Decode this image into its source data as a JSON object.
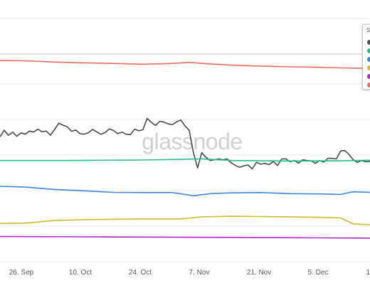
{
  "watermark": "glassnode",
  "legend": {
    "title": "S",
    "colors": [
      "#4a4a4a",
      "#1fbf8f",
      "#3a86dc",
      "#d4b82a",
      "#b026c8",
      "#ef6a5c"
    ]
  },
  "chart_data": {
    "type": "line",
    "title": "",
    "xlabel": "",
    "ylabel": "",
    "grid": true,
    "legend_placement": "top-right",
    "x_ticks": [
      "26. Sep",
      "10. Oct",
      "24. Oct",
      "7. Nov",
      "21. Nov",
      "5. Dec",
      "1"
    ],
    "x_range": [
      "2022-09-20",
      "2022-12-17"
    ],
    "y_range": [
      0,
      100
    ],
    "series": [
      {
        "color": "#ef6a5c",
        "points": [
          [
            "2022-09-20",
            77.0
          ],
          [
            "2022-09-26",
            76.9
          ],
          [
            "2022-10-03",
            76.4
          ],
          [
            "2022-10-10",
            76.1
          ],
          [
            "2022-10-17",
            75.9
          ],
          [
            "2022-10-24",
            75.6
          ],
          [
            "2022-10-31",
            75.9
          ],
          [
            "2022-11-04",
            76.3
          ],
          [
            "2022-11-09",
            75.7
          ],
          [
            "2022-11-15",
            75.2
          ],
          [
            "2022-11-21",
            74.9
          ],
          [
            "2022-11-28",
            74.6
          ],
          [
            "2022-12-05",
            74.4
          ],
          [
            "2022-12-10",
            74.2
          ],
          [
            "2022-12-17",
            74.0
          ]
        ]
      },
      {
        "color": "#4a4a4a",
        "points": [
          [
            "2022-09-20",
            48.0
          ],
          [
            "2022-09-21",
            50.5
          ],
          [
            "2022-09-22",
            48.6
          ],
          [
            "2022-09-23",
            49.8
          ],
          [
            "2022-09-24",
            48.2
          ],
          [
            "2022-09-25",
            49.5
          ],
          [
            "2022-09-26",
            49.0
          ],
          [
            "2022-09-27",
            50.2
          ],
          [
            "2022-09-28",
            49.8
          ],
          [
            "2022-09-29",
            50.9
          ],
          [
            "2022-09-30",
            49.9
          ],
          [
            "2022-10-01",
            50.2
          ],
          [
            "2022-10-02",
            48.6
          ],
          [
            "2022-10-03",
            50.8
          ],
          [
            "2022-10-04",
            53.2
          ],
          [
            "2022-10-05",
            52.4
          ],
          [
            "2022-10-06",
            51.8
          ],
          [
            "2022-10-07",
            50.1
          ],
          [
            "2022-10-08",
            50.6
          ],
          [
            "2022-10-09",
            49.2
          ],
          [
            "2022-10-10",
            49.0
          ],
          [
            "2022-10-11",
            49.5
          ],
          [
            "2022-10-12",
            50.8
          ],
          [
            "2022-10-13",
            49.9
          ],
          [
            "2022-10-14",
            49.0
          ],
          [
            "2022-10-15",
            49.6
          ],
          [
            "2022-10-16",
            51.0
          ],
          [
            "2022-10-17",
            50.4
          ],
          [
            "2022-10-18",
            49.2
          ],
          [
            "2022-10-19",
            49.8
          ],
          [
            "2022-10-20",
            49.0
          ],
          [
            "2022-10-21",
            48.8
          ],
          [
            "2022-10-22",
            50.9
          ],
          [
            "2022-10-23",
            50.3
          ],
          [
            "2022-10-24",
            50.7
          ],
          [
            "2022-10-25",
            55.0
          ],
          [
            "2022-10-26",
            53.5
          ],
          [
            "2022-10-27",
            52.3
          ],
          [
            "2022-10-28",
            53.9
          ],
          [
            "2022-10-29",
            53.6
          ],
          [
            "2022-10-30",
            52.9
          ],
          [
            "2022-10-31",
            52.6
          ],
          [
            "2022-11-01",
            53.7
          ],
          [
            "2022-11-02",
            54.4
          ],
          [
            "2022-11-03",
            52.1
          ],
          [
            "2022-11-04",
            50.5
          ],
          [
            "2022-11-05",
            42.0
          ],
          [
            "2022-11-06",
            36.2
          ],
          [
            "2022-11-07",
            42.0
          ],
          [
            "2022-11-08",
            40.2
          ],
          [
            "2022-11-09",
            39.0
          ],
          [
            "2022-11-10",
            39.3
          ],
          [
            "2022-11-11",
            39.6
          ],
          [
            "2022-11-12",
            39.3
          ],
          [
            "2022-11-13",
            39.6
          ],
          [
            "2022-11-14",
            38.1
          ],
          [
            "2022-11-15",
            37.1
          ],
          [
            "2022-11-16",
            36.4
          ],
          [
            "2022-11-17",
            37.0
          ],
          [
            "2022-11-18",
            37.3
          ],
          [
            "2022-11-19",
            35.8
          ],
          [
            "2022-11-20",
            38.3
          ],
          [
            "2022-11-21",
            37.6
          ],
          [
            "2022-11-22",
            37.9
          ],
          [
            "2022-11-23",
            37.4
          ],
          [
            "2022-11-24",
            38.6
          ],
          [
            "2022-11-25",
            37.1
          ],
          [
            "2022-11-26",
            39.6
          ],
          [
            "2022-11-27",
            39.6
          ],
          [
            "2022-11-28",
            38.5
          ],
          [
            "2022-11-29",
            39.0
          ],
          [
            "2022-11-30",
            38.0
          ],
          [
            "2022-12-01",
            39.3
          ],
          [
            "2022-12-02",
            39.0
          ],
          [
            "2022-12-03",
            38.9
          ],
          [
            "2022-12-04",
            37.9
          ],
          [
            "2022-12-05",
            39.0
          ],
          [
            "2022-12-06",
            38.4
          ],
          [
            "2022-12-07",
            39.8
          ],
          [
            "2022-12-08",
            39.8
          ],
          [
            "2022-12-09",
            39.6
          ],
          [
            "2022-12-10",
            42.6
          ],
          [
            "2022-12-11",
            42.8
          ],
          [
            "2022-12-12",
            41.3
          ],
          [
            "2022-12-13",
            39.3
          ],
          [
            "2022-12-14",
            38.3
          ],
          [
            "2022-12-15",
            39.0
          ],
          [
            "2022-12-16",
            38.5
          ],
          [
            "2022-12-17",
            38.6
          ]
        ]
      },
      {
        "color": "#1fbf8f",
        "points": [
          [
            "2022-09-20",
            39.0
          ],
          [
            "2022-10-06",
            39.0
          ],
          [
            "2022-10-24",
            39.2
          ],
          [
            "2022-11-07",
            39.6
          ],
          [
            "2022-11-14",
            39.0
          ],
          [
            "2022-11-28",
            38.8
          ],
          [
            "2022-12-10",
            38.9
          ],
          [
            "2022-12-17",
            39.1
          ]
        ]
      },
      {
        "color": "#3a86dc",
        "points": [
          [
            "2022-09-20",
            29.2
          ],
          [
            "2022-09-26",
            28.9
          ],
          [
            "2022-10-03",
            28.0
          ],
          [
            "2022-10-10",
            27.5
          ],
          [
            "2022-10-17",
            26.9
          ],
          [
            "2022-10-24",
            26.8
          ],
          [
            "2022-10-31",
            26.8
          ],
          [
            "2022-11-05",
            25.6
          ],
          [
            "2022-11-09",
            26.4
          ],
          [
            "2022-11-14",
            26.7
          ],
          [
            "2022-11-21",
            26.8
          ],
          [
            "2022-11-28",
            26.4
          ],
          [
            "2022-12-05",
            26.3
          ],
          [
            "2022-12-10",
            26.1
          ],
          [
            "2022-12-13",
            27.1
          ],
          [
            "2022-12-17",
            26.9
          ]
        ]
      },
      {
        "color": "#d4b82a",
        "points": [
          [
            "2022-09-20",
            15.1
          ],
          [
            "2022-09-26",
            15.2
          ],
          [
            "2022-10-03",
            16.2
          ],
          [
            "2022-10-10",
            16.5
          ],
          [
            "2022-10-24",
            16.8
          ],
          [
            "2022-11-02",
            16.8
          ],
          [
            "2022-11-07",
            17.6
          ],
          [
            "2022-11-14",
            17.8
          ],
          [
            "2022-11-21",
            17.7
          ],
          [
            "2022-11-28",
            17.6
          ],
          [
            "2022-12-05",
            17.4
          ],
          [
            "2022-12-10",
            17.2
          ],
          [
            "2022-12-13",
            14.9
          ],
          [
            "2022-12-17",
            14.6
          ]
        ]
      },
      {
        "color": "#b026c8",
        "points": [
          [
            "2022-09-20",
            10.1
          ],
          [
            "2022-10-10",
            10.0
          ],
          [
            "2022-11-07",
            9.8
          ],
          [
            "2022-12-05",
            9.6
          ],
          [
            "2022-12-17",
            9.5
          ]
        ]
      }
    ]
  }
}
